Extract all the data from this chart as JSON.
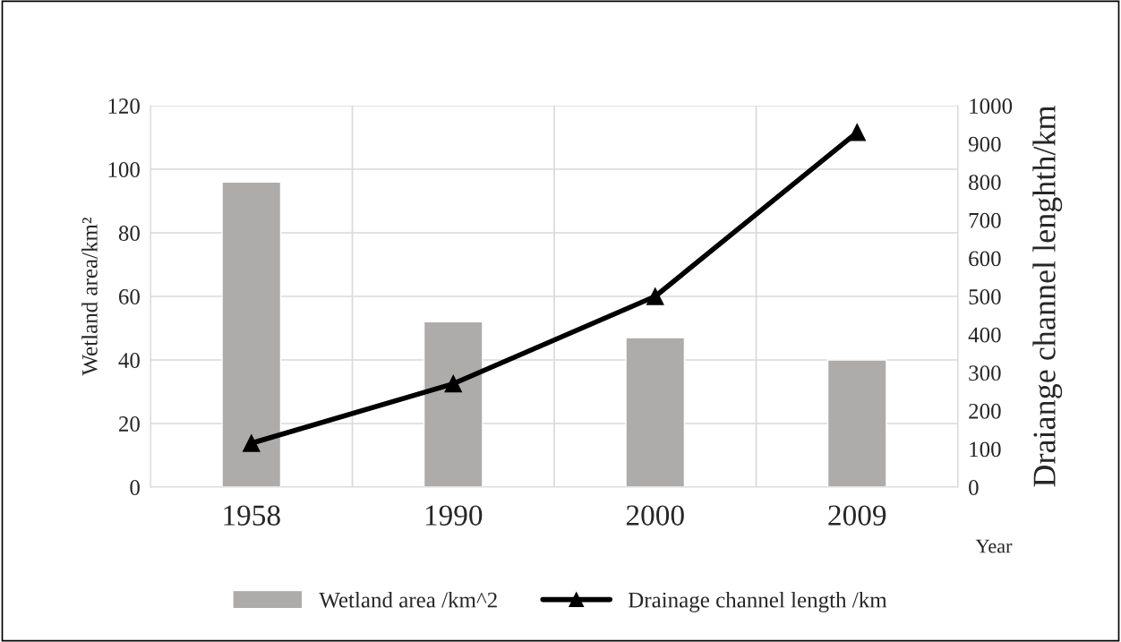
{
  "chart_data": {
    "type": "bar",
    "categories": [
      "1958",
      "1990",
      "2000",
      "2009"
    ],
    "series": [
      {
        "name": "Wetland area /km^2",
        "color": "#aeabab",
        "values": [
          96,
          52,
          47,
          40
        ]
      },
      {
        "name": "Drainage channel length /km",
        "type": "line",
        "axis": "y2",
        "color": "#000000",
        "marker": "triangle",
        "values": [
          115,
          271,
          500,
          930
        ]
      }
    ],
    "xlabel": "Year",
    "ylabel": "Wetland area/km²",
    "y2label": "Draiange channel lenghth/km",
    "ylim": [
      0,
      120
    ],
    "yticks": [
      0,
      20,
      40,
      60,
      80,
      100,
      120
    ],
    "y2lim": [
      0,
      1000
    ],
    "y2ticks": [
      0,
      100,
      200,
      300,
      400,
      500,
      600,
      700,
      800,
      900,
      1000
    ],
    "grid": true,
    "legend": "bottom"
  }
}
